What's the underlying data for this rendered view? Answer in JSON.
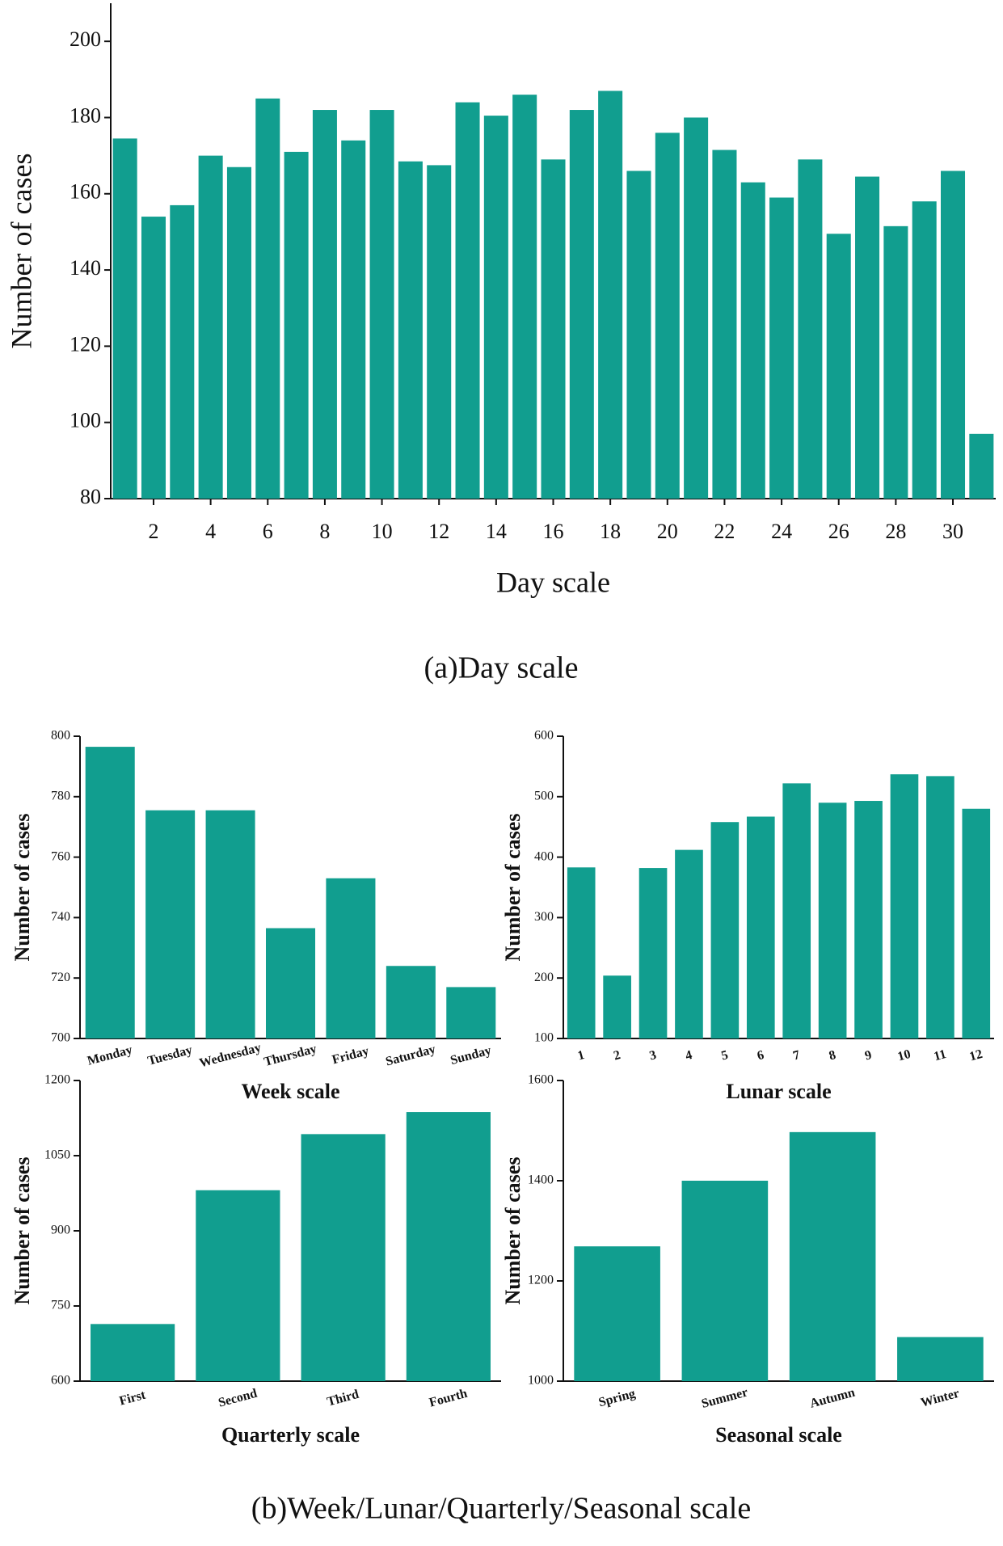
{
  "captions": [
    "(a)Day scale",
    "(b)Week/Lunar/Quarterly/Seasonal scale"
  ],
  "chart_data": [
    {
      "type": "bar",
      "x_label": "Day scale",
      "y_label": "Number of cases",
      "color": "#119e8f",
      "x": [
        1,
        2,
        3,
        4,
        5,
        6,
        7,
        8,
        9,
        10,
        11,
        12,
        13,
        14,
        15,
        16,
        17,
        18,
        19,
        20,
        21,
        22,
        23,
        24,
        25,
        26,
        27,
        28,
        29,
        30,
        31
      ],
      "values": [
        174.5,
        154,
        157,
        170,
        167,
        185,
        171,
        182,
        174,
        182,
        168.5,
        167.5,
        184,
        180.5,
        186,
        169,
        182,
        187,
        166,
        176,
        180,
        171.5,
        163,
        159,
        169,
        149.5,
        164.5,
        151.5,
        158,
        166,
        97
      ],
      "xlim": [
        0.5,
        31.5
      ],
      "xticks": [
        2,
        4,
        6,
        8,
        10,
        12,
        14,
        16,
        18,
        20,
        22,
        24,
        26,
        28,
        30
      ],
      "ylim": [
        80,
        210
      ],
      "yticks": [
        80,
        100,
        120,
        140,
        160,
        180,
        200
      ]
    },
    {
      "type": "bar",
      "x_label": "Week scale",
      "y_label": "Number of cases",
      "color": "#119e8f",
      "categories": [
        "Monday",
        "Tuesday",
        "Wednesday",
        "Thursday",
        "Friday",
        "Saturday",
        "Sunday"
      ],
      "values": [
        796.5,
        775.5,
        775.5,
        736.5,
        753,
        724,
        717
      ],
      "ylim": [
        700,
        800
      ],
      "yticks": [
        700,
        720,
        740,
        760,
        780,
        800
      ]
    },
    {
      "type": "bar",
      "x_label": "Lunar scale",
      "y_label": "Number of cases",
      "color": "#119e8f",
      "categories": [
        "1",
        "2",
        "3",
        "4",
        "5",
        "6",
        "7",
        "8",
        "9",
        "10",
        "11",
        "12"
      ],
      "values": [
        383,
        204,
        382,
        412,
        458,
        467,
        522,
        490,
        493,
        537,
        534,
        480
      ],
      "ylim": [
        100,
        600
      ],
      "yticks": [
        100,
        200,
        300,
        400,
        500,
        600
      ]
    },
    {
      "type": "bar",
      "x_label": "Quarterly scale",
      "y_label": "Number of cases",
      "color": "#119e8f",
      "categories": [
        "First",
        "Second",
        "Third",
        "Fourth"
      ],
      "values": [
        714,
        981,
        1093,
        1137
      ],
      "ylim": [
        600,
        1200
      ],
      "yticks": [
        600,
        750,
        900,
        1050,
        1200
      ]
    },
    {
      "type": "bar",
      "x_label": "Seasonal scale",
      "y_label": "Number of cases",
      "color": "#119e8f",
      "categories": [
        "Spring",
        "Summer",
        "Autumn",
        "Winter"
      ],
      "values": [
        1269,
        1400,
        1497,
        1088
      ],
      "ylim": [
        1000,
        1600
      ],
      "yticks": [
        1000,
        1200,
        1400,
        1600
      ]
    }
  ]
}
